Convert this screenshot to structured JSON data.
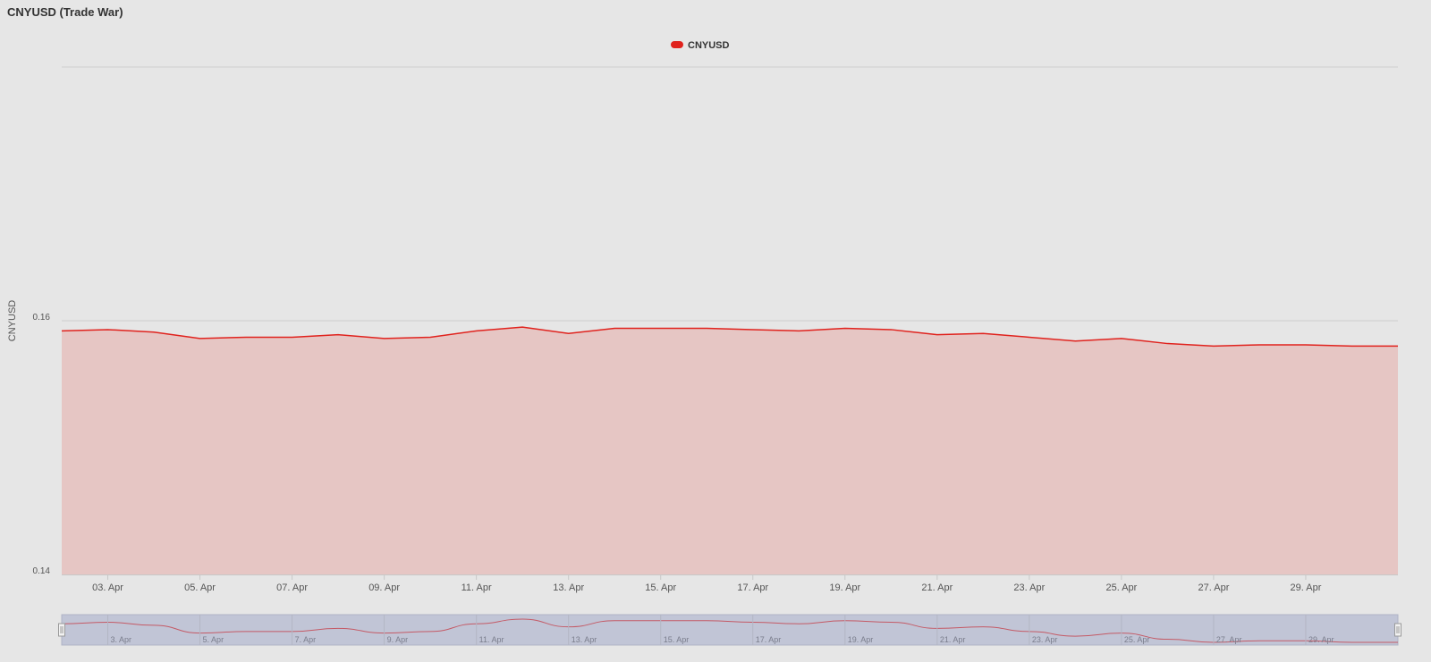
{
  "title": "CNYUSD (Trade War)",
  "chart_data": {
    "type": "area",
    "title": "CNYUSD (Trade War)",
    "xlabel": "",
    "ylabel": "CNYUSD",
    "legend": {
      "position": "top-center",
      "entries": [
        "CNYUSD"
      ]
    },
    "series": [
      {
        "name": "CNYUSD",
        "color": "#e0221d",
        "fill": "#e6c6c4",
        "x": [
          "2025-04-02",
          "2025-04-03",
          "2025-04-04",
          "2025-04-05",
          "2025-04-06",
          "2025-04-07",
          "2025-04-08",
          "2025-04-09",
          "2025-04-10",
          "2025-04-11",
          "2025-04-12",
          "2025-04-13",
          "2025-04-14",
          "2025-04-15",
          "2025-04-16",
          "2025-04-17",
          "2025-04-18",
          "2025-04-19",
          "2025-04-20",
          "2025-04-21",
          "2025-04-22",
          "2025-04-23",
          "2025-04-24",
          "2025-04-25",
          "2025-04-26",
          "2025-04-27",
          "2025-04-28",
          "2025-04-29",
          "2025-04-30",
          "2025-05-01"
        ],
        "values": [
          0.1592,
          0.1593,
          0.1591,
          0.1586,
          0.1587,
          0.1587,
          0.1589,
          0.1586,
          0.1587,
          0.1592,
          0.1595,
          0.159,
          0.1594,
          0.1594,
          0.1594,
          0.1593,
          0.1592,
          0.1594,
          0.1593,
          0.1589,
          0.159,
          0.1587,
          0.1584,
          0.1586,
          0.1582,
          0.158,
          0.1581,
          0.1581,
          0.158,
          0.158
        ]
      }
    ],
    "yaxis": {
      "ylim": [
        0.14,
        0.18
      ],
      "ticks": [
        "0.14",
        "0.16"
      ]
    },
    "xaxis": {
      "ticks": [
        {
          "date": "2025-04-03",
          "label": "03. Apr"
        },
        {
          "date": "2025-04-05",
          "label": "05. Apr"
        },
        {
          "date": "2025-04-07",
          "label": "07. Apr"
        },
        {
          "date": "2025-04-09",
          "label": "09. Apr"
        },
        {
          "date": "2025-04-11",
          "label": "11. Apr"
        },
        {
          "date": "2025-04-13",
          "label": "13. Apr"
        },
        {
          "date": "2025-04-15",
          "label": "15. Apr"
        },
        {
          "date": "2025-04-17",
          "label": "17. Apr"
        },
        {
          "date": "2025-04-19",
          "label": "19. Apr"
        },
        {
          "date": "2025-04-21",
          "label": "21. Apr"
        },
        {
          "date": "2025-04-23",
          "label": "23. Apr"
        },
        {
          "date": "2025-04-25",
          "label": "25. Apr"
        },
        {
          "date": "2025-04-27",
          "label": "27. Apr"
        },
        {
          "date": "2025-04-29",
          "label": "29. Apr"
        }
      ]
    },
    "navigator": {
      "ticks": [
        {
          "date": "2025-04-03",
          "label": "3. Apr"
        },
        {
          "date": "2025-04-05",
          "label": "5. Apr"
        },
        {
          "date": "2025-04-07",
          "label": "7. Apr"
        },
        {
          "date": "2025-04-09",
          "label": "9. Apr"
        },
        {
          "date": "2025-04-11",
          "label": "11. Apr"
        },
        {
          "date": "2025-04-13",
          "label": "13. Apr"
        },
        {
          "date": "2025-04-15",
          "label": "15. Apr"
        },
        {
          "date": "2025-04-17",
          "label": "17. Apr"
        },
        {
          "date": "2025-04-19",
          "label": "19. Apr"
        },
        {
          "date": "2025-04-21",
          "label": "21. Apr"
        },
        {
          "date": "2025-04-23",
          "label": "23. Apr"
        },
        {
          "date": "2025-04-25",
          "label": "25. Apr"
        },
        {
          "date": "2025-04-27",
          "label": "27. Apr"
        },
        {
          "date": "2025-04-29",
          "label": "29. Apr"
        }
      ]
    },
    "grid": true
  }
}
